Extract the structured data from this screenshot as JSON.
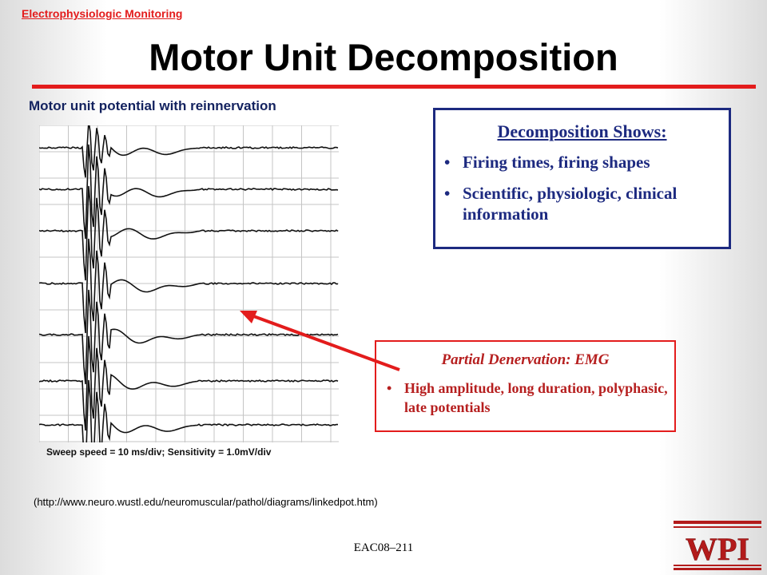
{
  "header": {
    "section_link": "Electrophysiologic Monitoring"
  },
  "slide": {
    "title": "Motor Unit Decomposition",
    "subtitle": "Motor unit potential with reinnervation",
    "figure_caption": "Sweep speed = 10 ms/div; Sensitivity = 1.0mV/div",
    "source_url": "(http://www.neuro.wustl.edu/neuromuscular/pathol/diagrams/linkedpot.htm)",
    "footer": "EAC08–211"
  },
  "decomposition_box": {
    "heading": "Decomposition Shows:",
    "bullets": [
      "Firing times, firing shapes",
      "Scientific, physiologic, clinical information"
    ]
  },
  "denervation_box": {
    "heading": "Partial Denervation: EMG",
    "bullets": [
      "High amplitude, long duration, polyphasic, late  potentials"
    ]
  },
  "logo": {
    "text": "WPI",
    "color": "#b31b1b"
  },
  "colors": {
    "accent_red": "#e31c1c",
    "navy": "#1d2a80",
    "dark_red": "#b61f1f"
  }
}
